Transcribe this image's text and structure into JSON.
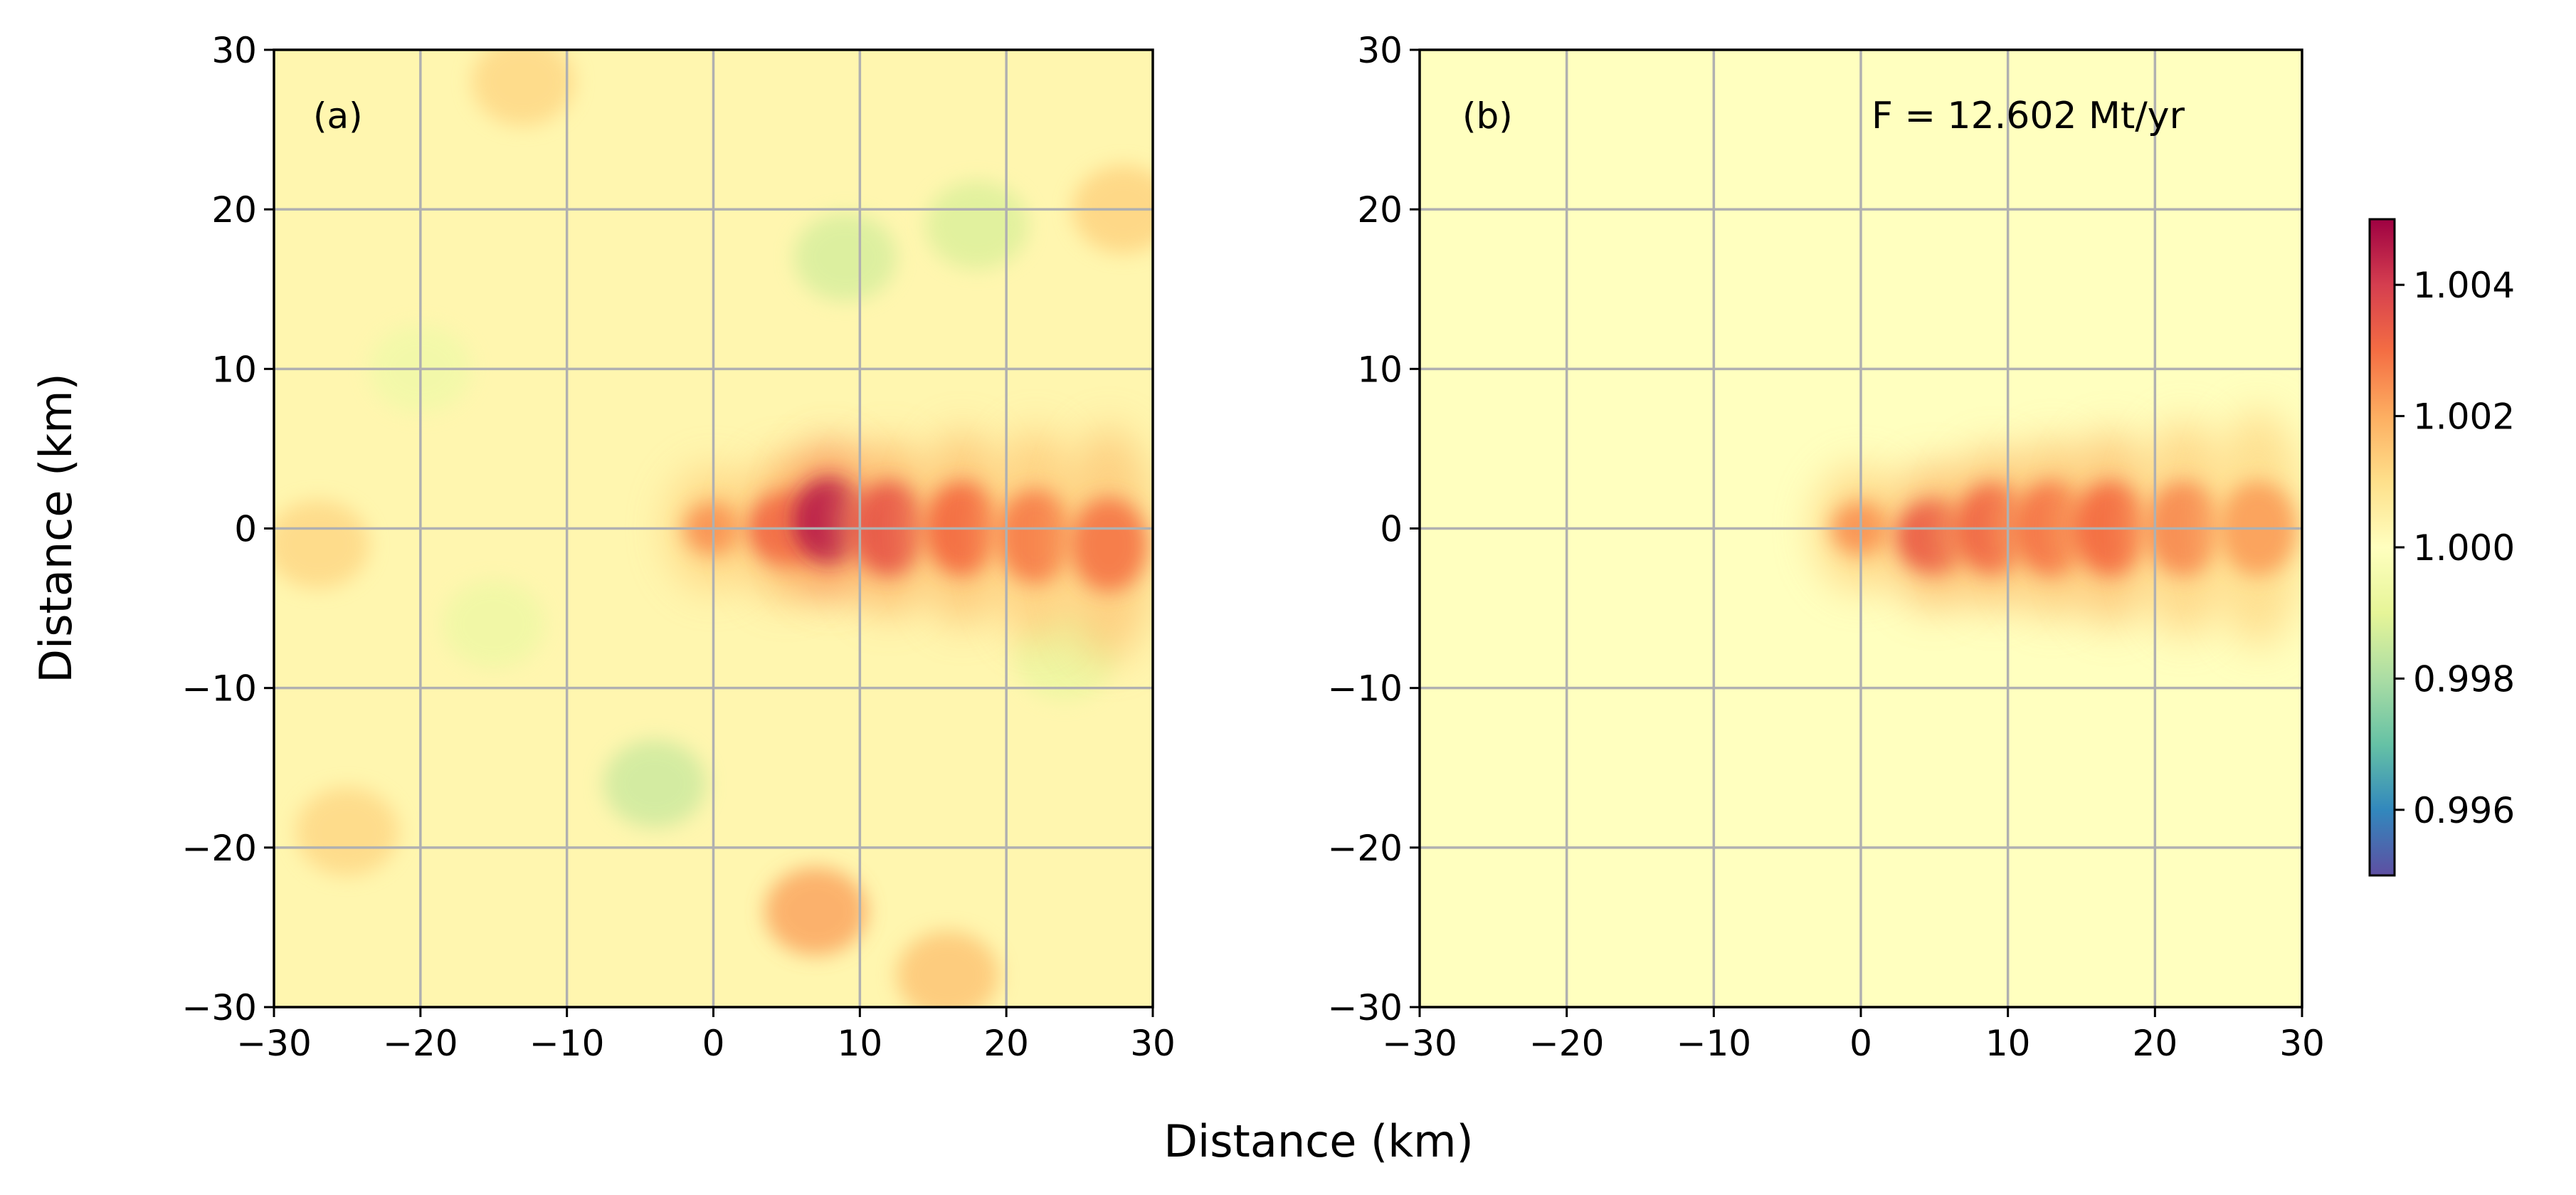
{
  "chart_data": [
    {
      "type": "heatmap",
      "panel_label": "(a)",
      "xlabel": "Distance (km)",
      "ylabel": "Distance (km)",
      "xlim": [
        -30,
        30
      ],
      "ylim": [
        -30,
        30
      ],
      "xticks": [
        -30,
        -20,
        -10,
        0,
        10,
        20,
        30
      ],
      "yticks": [
        -30,
        -20,
        -10,
        0,
        10,
        20,
        30
      ],
      "x_tick_labels": [
        "−30",
        "−20",
        "−10",
        "0",
        "10",
        "20",
        "30"
      ],
      "y_tick_labels": [
        "−30",
        "−20",
        "−10",
        "0",
        "10",
        "20",
        "30"
      ],
      "grid": true,
      "background_value": 1.0003,
      "plume": [
        {
          "x": 0,
          "y": 0,
          "value": 1.0024
        },
        {
          "x": 5,
          "y": 0,
          "value": 1.0031
        },
        {
          "x": 8,
          "y": 0.5,
          "value": 1.0045
        },
        {
          "x": 12,
          "y": 0,
          "value": 1.0034
        },
        {
          "x": 17,
          "y": 0,
          "value": 1.003
        },
        {
          "x": 22,
          "y": -0.5,
          "value": 1.0027
        },
        {
          "x": 27,
          "y": -1,
          "value": 1.0028
        }
      ],
      "noise_patches": [
        {
          "x": -4,
          "y": -16,
          "value": 0.9985
        },
        {
          "x": 9,
          "y": 17,
          "value": 0.9987
        },
        {
          "x": 18,
          "y": 19,
          "value": 0.9988
        },
        {
          "x": 7,
          "y": -24,
          "value": 1.0022
        },
        {
          "x": 16,
          "y": -28,
          "value": 1.0016
        },
        {
          "x": -25,
          "y": -19,
          "value": 1.0012
        },
        {
          "x": -13,
          "y": 28,
          "value": 1.0012
        },
        {
          "x": 28,
          "y": 20,
          "value": 1.0013
        },
        {
          "x": -15,
          "y": -6,
          "value": 0.9993
        },
        {
          "x": 24,
          "y": -8,
          "value": 0.9992
        },
        {
          "x": -27,
          "y": -1,
          "value": 1.0012
        },
        {
          "x": -20,
          "y": 10,
          "value": 0.9994
        }
      ]
    },
    {
      "type": "heatmap",
      "panel_label": "(b)",
      "annotation": "F = 12.602 Mt/yr",
      "xlabel": "Distance (km)",
      "ylabel": "",
      "xlim": [
        -30,
        30
      ],
      "ylim": [
        -30,
        30
      ],
      "xticks": [
        -30,
        -20,
        -10,
        0,
        10,
        20,
        30
      ],
      "yticks": [
        -30,
        -20,
        -10,
        0,
        10,
        20,
        30
      ],
      "x_tick_labels": [
        "−30",
        "−20",
        "−10",
        "0",
        "10",
        "20",
        "30"
      ],
      "y_tick_labels": [
        "−30",
        "−20",
        "−10",
        "0",
        "10",
        "20",
        "30"
      ],
      "grid": true,
      "background_value": 1.0,
      "plume": [
        {
          "x": 0,
          "y": 0,
          "value": 1.0024
        },
        {
          "x": 5,
          "y": -0.5,
          "value": 1.0033
        },
        {
          "x": 9,
          "y": 0,
          "value": 1.0031
        },
        {
          "x": 13,
          "y": 0,
          "value": 1.0029
        },
        {
          "x": 17,
          "y": 0,
          "value": 1.003
        },
        {
          "x": 22,
          "y": 0,
          "value": 1.0025
        },
        {
          "x": 27,
          "y": 0,
          "value": 1.0022
        }
      ]
    }
  ],
  "colorbar": {
    "cmap": "Spectral_r",
    "vmin": 0.995,
    "vmax": 1.005,
    "ticks": [
      0.996,
      0.998,
      1.0,
      1.002,
      1.004
    ],
    "tick_labels": [
      "0.996",
      "0.998",
      "1.000",
      "1.002",
      "1.004"
    ]
  },
  "shared_xlabel": "Distance (km)",
  "shared_ylabel": "Distance (km)"
}
